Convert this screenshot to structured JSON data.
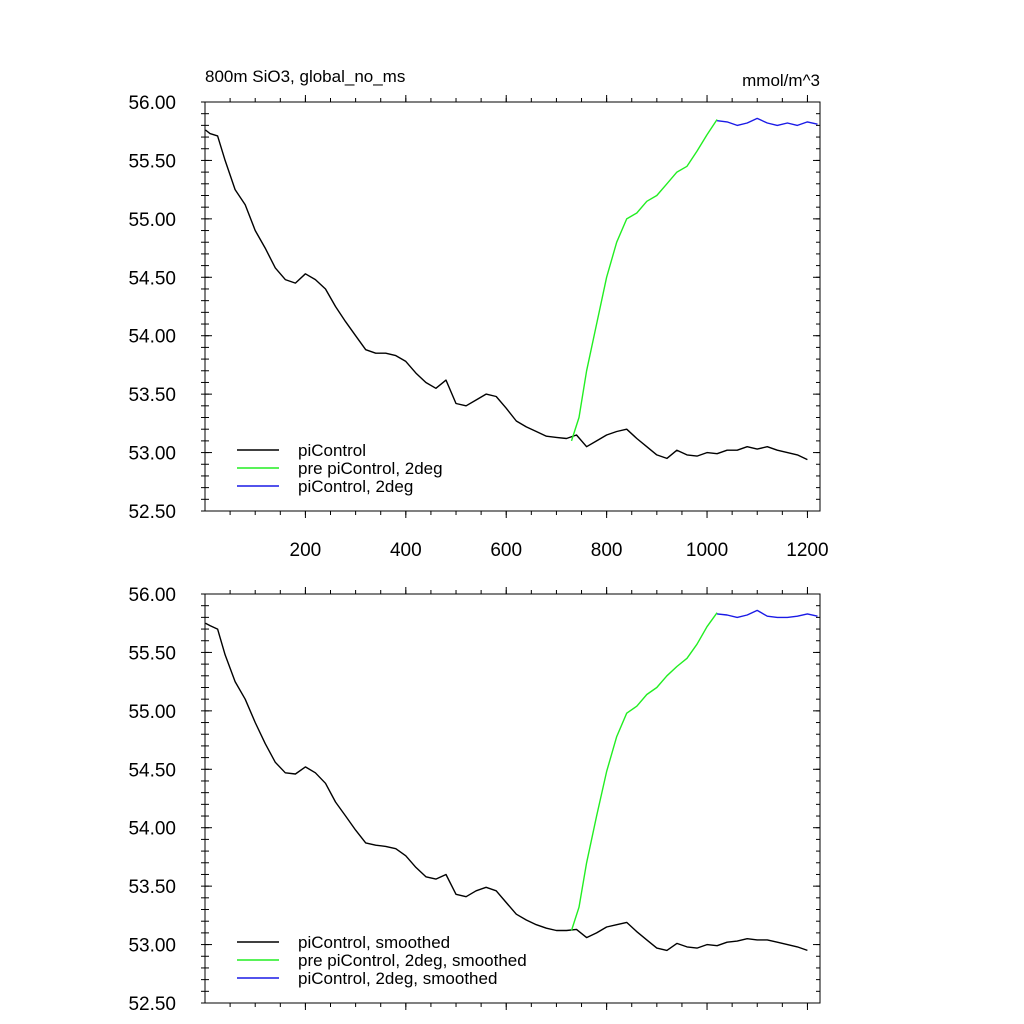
{
  "chart_data": [
    {
      "type": "line",
      "title": "800m SiO3, global_no_ms",
      "units": "mmol/m^3",
      "xlim": [
        0,
        1225
      ],
      "ylim": [
        52.5,
        56.0
      ],
      "x_ticks": [
        200,
        400,
        600,
        800,
        1000,
        1200
      ],
      "y_ticks": [
        "52.50",
        "53.00",
        "53.50",
        "54.00",
        "54.50",
        "55.00",
        "55.50",
        "56.00"
      ],
      "legend_position": "bottom-left",
      "series": [
        {
          "name": "piControl",
          "color": "#000000",
          "points": [
            [
              1,
              55.76
            ],
            [
              10,
              55.73
            ],
            [
              25,
              55.71
            ],
            [
              40,
              55.5
            ],
            [
              60,
              55.25
            ],
            [
              80,
              55.12
            ],
            [
              100,
              54.9
            ],
            [
              120,
              54.75
            ],
            [
              140,
              54.58
            ],
            [
              160,
              54.48
            ],
            [
              180,
              54.45
            ],
            [
              200,
              54.53
            ],
            [
              220,
              54.48
            ],
            [
              240,
              54.4
            ],
            [
              260,
              54.25
            ],
            [
              280,
              54.12
            ],
            [
              300,
              54.0
            ],
            [
              320,
              53.88
            ],
            [
              340,
              53.85
            ],
            [
              360,
              53.85
            ],
            [
              380,
              53.83
            ],
            [
              400,
              53.78
            ],
            [
              420,
              53.68
            ],
            [
              440,
              53.6
            ],
            [
              460,
              53.55
            ],
            [
              480,
              53.62
            ],
            [
              500,
              53.42
            ],
            [
              520,
              53.4
            ],
            [
              540,
              53.45
            ],
            [
              560,
              53.5
            ],
            [
              580,
              53.48
            ],
            [
              600,
              53.38
            ],
            [
              620,
              53.27
            ],
            [
              640,
              53.22
            ],
            [
              660,
              53.18
            ],
            [
              680,
              53.14
            ],
            [
              700,
              53.13
            ],
            [
              720,
              53.12
            ],
            [
              740,
              53.15
            ],
            [
              760,
              53.05
            ],
            [
              780,
              53.1
            ],
            [
              800,
              53.15
            ],
            [
              820,
              53.18
            ],
            [
              840,
              53.2
            ],
            [
              860,
              53.12
            ],
            [
              880,
              53.05
            ],
            [
              900,
              52.98
            ],
            [
              920,
              52.95
            ],
            [
              940,
              53.02
            ],
            [
              960,
              52.98
            ],
            [
              980,
              52.97
            ],
            [
              1000,
              53.0
            ],
            [
              1020,
              52.99
            ],
            [
              1040,
              53.02
            ],
            [
              1060,
              53.02
            ],
            [
              1080,
              53.05
            ],
            [
              1100,
              53.03
            ],
            [
              1120,
              53.05
            ],
            [
              1140,
              53.02
            ],
            [
              1160,
              53.0
            ],
            [
              1180,
              52.98
            ],
            [
              1200,
              52.94
            ]
          ]
        },
        {
          "name": "pre piControl, 2deg",
          "color": "#22ee22",
          "points": [
            [
              730,
              53.1
            ],
            [
              745,
              53.3
            ],
            [
              760,
              53.7
            ],
            [
              780,
              54.1
            ],
            [
              800,
              54.5
            ],
            [
              820,
              54.8
            ],
            [
              840,
              55.0
            ],
            [
              860,
              55.05
            ],
            [
              880,
              55.15
            ],
            [
              900,
              55.2
            ],
            [
              920,
              55.3
            ],
            [
              940,
              55.4
            ],
            [
              960,
              55.45
            ],
            [
              980,
              55.58
            ],
            [
              1000,
              55.72
            ],
            [
              1020,
              55.85
            ]
          ]
        },
        {
          "name": "piControl, 2deg",
          "color": "#1a1ae6",
          "points": [
            [
              1020,
              55.84
            ],
            [
              1040,
              55.83
            ],
            [
              1060,
              55.8
            ],
            [
              1080,
              55.82
            ],
            [
              1100,
              55.86
            ],
            [
              1120,
              55.82
            ],
            [
              1140,
              55.8
            ],
            [
              1160,
              55.82
            ],
            [
              1180,
              55.8
            ],
            [
              1200,
              55.83
            ],
            [
              1220,
              55.81
            ]
          ]
        }
      ]
    },
    {
      "type": "line",
      "xlim": [
        0,
        1225
      ],
      "ylim": [
        52.5,
        56.0
      ],
      "y_ticks": [
        "52.50",
        "53.00",
        "53.50",
        "54.00",
        "54.50",
        "55.00",
        "55.50",
        "56.00"
      ],
      "legend_position": "bottom-left",
      "series": [
        {
          "name": "piControl, smoothed",
          "color": "#000000",
          "points": [
            [
              1,
              55.75
            ],
            [
              10,
              55.73
            ],
            [
              25,
              55.7
            ],
            [
              40,
              55.48
            ],
            [
              60,
              55.25
            ],
            [
              80,
              55.1
            ],
            [
              100,
              54.9
            ],
            [
              120,
              54.72
            ],
            [
              140,
              54.56
            ],
            [
              160,
              54.47
            ],
            [
              180,
              54.46
            ],
            [
              200,
              54.52
            ],
            [
              220,
              54.47
            ],
            [
              240,
              54.38
            ],
            [
              260,
              54.22
            ],
            [
              280,
              54.1
            ],
            [
              300,
              53.98
            ],
            [
              320,
              53.87
            ],
            [
              340,
              53.85
            ],
            [
              360,
              53.84
            ],
            [
              380,
              53.82
            ],
            [
              400,
              53.76
            ],
            [
              420,
              53.66
            ],
            [
              440,
              53.58
            ],
            [
              460,
              53.56
            ],
            [
              480,
              53.6
            ],
            [
              500,
              53.43
            ],
            [
              520,
              53.41
            ],
            [
              540,
              53.46
            ],
            [
              560,
              53.49
            ],
            [
              580,
              53.46
            ],
            [
              600,
              53.36
            ],
            [
              620,
              53.26
            ],
            [
              640,
              53.21
            ],
            [
              660,
              53.17
            ],
            [
              680,
              53.14
            ],
            [
              700,
              53.12
            ],
            [
              720,
              53.12
            ],
            [
              740,
              53.13
            ],
            [
              760,
              53.06
            ],
            [
              780,
              53.1
            ],
            [
              800,
              53.15
            ],
            [
              820,
              53.17
            ],
            [
              840,
              53.19
            ],
            [
              860,
              53.11
            ],
            [
              880,
              53.04
            ],
            [
              900,
              52.97
            ],
            [
              920,
              52.95
            ],
            [
              940,
              53.01
            ],
            [
              960,
              52.98
            ],
            [
              980,
              52.97
            ],
            [
              1000,
              53.0
            ],
            [
              1020,
              52.99
            ],
            [
              1040,
              53.02
            ],
            [
              1060,
              53.03
            ],
            [
              1080,
              53.05
            ],
            [
              1100,
              53.04
            ],
            [
              1120,
              53.04
            ],
            [
              1140,
              53.02
            ],
            [
              1160,
              53.0
            ],
            [
              1180,
              52.98
            ],
            [
              1200,
              52.95
            ]
          ]
        },
        {
          "name": "pre piControl, 2deg, smoothed",
          "color": "#22ee22",
          "points": [
            [
              730,
              53.12
            ],
            [
              745,
              53.32
            ],
            [
              760,
              53.7
            ],
            [
              780,
              54.1
            ],
            [
              800,
              54.48
            ],
            [
              820,
              54.78
            ],
            [
              840,
              54.98
            ],
            [
              860,
              55.04
            ],
            [
              880,
              55.14
            ],
            [
              900,
              55.2
            ],
            [
              920,
              55.3
            ],
            [
              940,
              55.38
            ],
            [
              960,
              55.45
            ],
            [
              980,
              55.57
            ],
            [
              1000,
              55.72
            ],
            [
              1020,
              55.84
            ]
          ]
        },
        {
          "name": "piControl, 2deg, smoothed",
          "color": "#1a1ae6",
          "points": [
            [
              1020,
              55.83
            ],
            [
              1040,
              55.82
            ],
            [
              1060,
              55.8
            ],
            [
              1080,
              55.82
            ],
            [
              1100,
              55.86
            ],
            [
              1120,
              55.81
            ],
            [
              1140,
              55.8
            ],
            [
              1160,
              55.8
            ],
            [
              1180,
              55.81
            ],
            [
              1200,
              55.83
            ],
            [
              1220,
              55.81
            ]
          ]
        }
      ]
    }
  ]
}
